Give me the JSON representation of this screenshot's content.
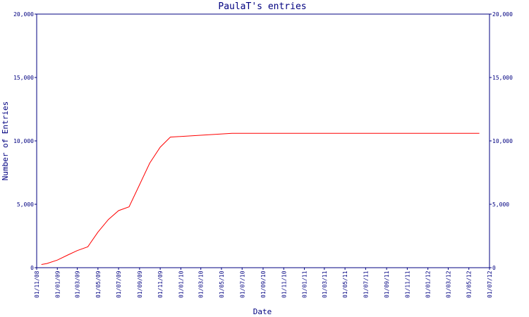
{
  "chart_data": {
    "type": "line",
    "title": "PaulaT's entries",
    "xlabel": "Date",
    "ylabel": "Number of Entries",
    "ylim": [
      0,
      20000
    ],
    "yticks": [
      0,
      5000,
      10000,
      15000,
      20000
    ],
    "ytick_labels": [
      "0",
      "5,000",
      "10,000",
      "15,000",
      "20,000"
    ],
    "xtick_labels": [
      "01/11/08",
      "01/01/09",
      "01/03/09",
      "01/05/09",
      "01/07/09",
      "01/09/09",
      "01/11/09",
      "01/01/10",
      "01/03/10",
      "01/05/10",
      "01/07/10",
      "01/09/10",
      "01/11/10",
      "01/01/11",
      "01/03/11",
      "01/05/11",
      "01/07/11",
      "01/09/11",
      "01/11/11",
      "01/01/12",
      "01/03/12",
      "01/05/12",
      "01/07/12"
    ],
    "grid": false,
    "series_color": "#ff0000",
    "axis_color": "#000080",
    "series": [
      {
        "x": [
          "2008-11-15",
          "2008-12-01",
          "2009-01-01",
          "2009-02-01",
          "2009-03-01",
          "2009-04-01",
          "2009-05-01",
          "2009-06-01",
          "2009-07-01",
          "2009-08-01",
          "2009-09-01",
          "2009-10-01",
          "2009-11-01",
          "2009-12-01",
          "2010-06-01",
          "2011-06-01",
          "2012-06-01"
        ],
        "values": [
          250,
          330,
          600,
          1000,
          1350,
          1650,
          2800,
          3800,
          4500,
          4800,
          6550,
          8250,
          9500,
          10300,
          10600,
          10600,
          10600
        ]
      }
    ]
  }
}
